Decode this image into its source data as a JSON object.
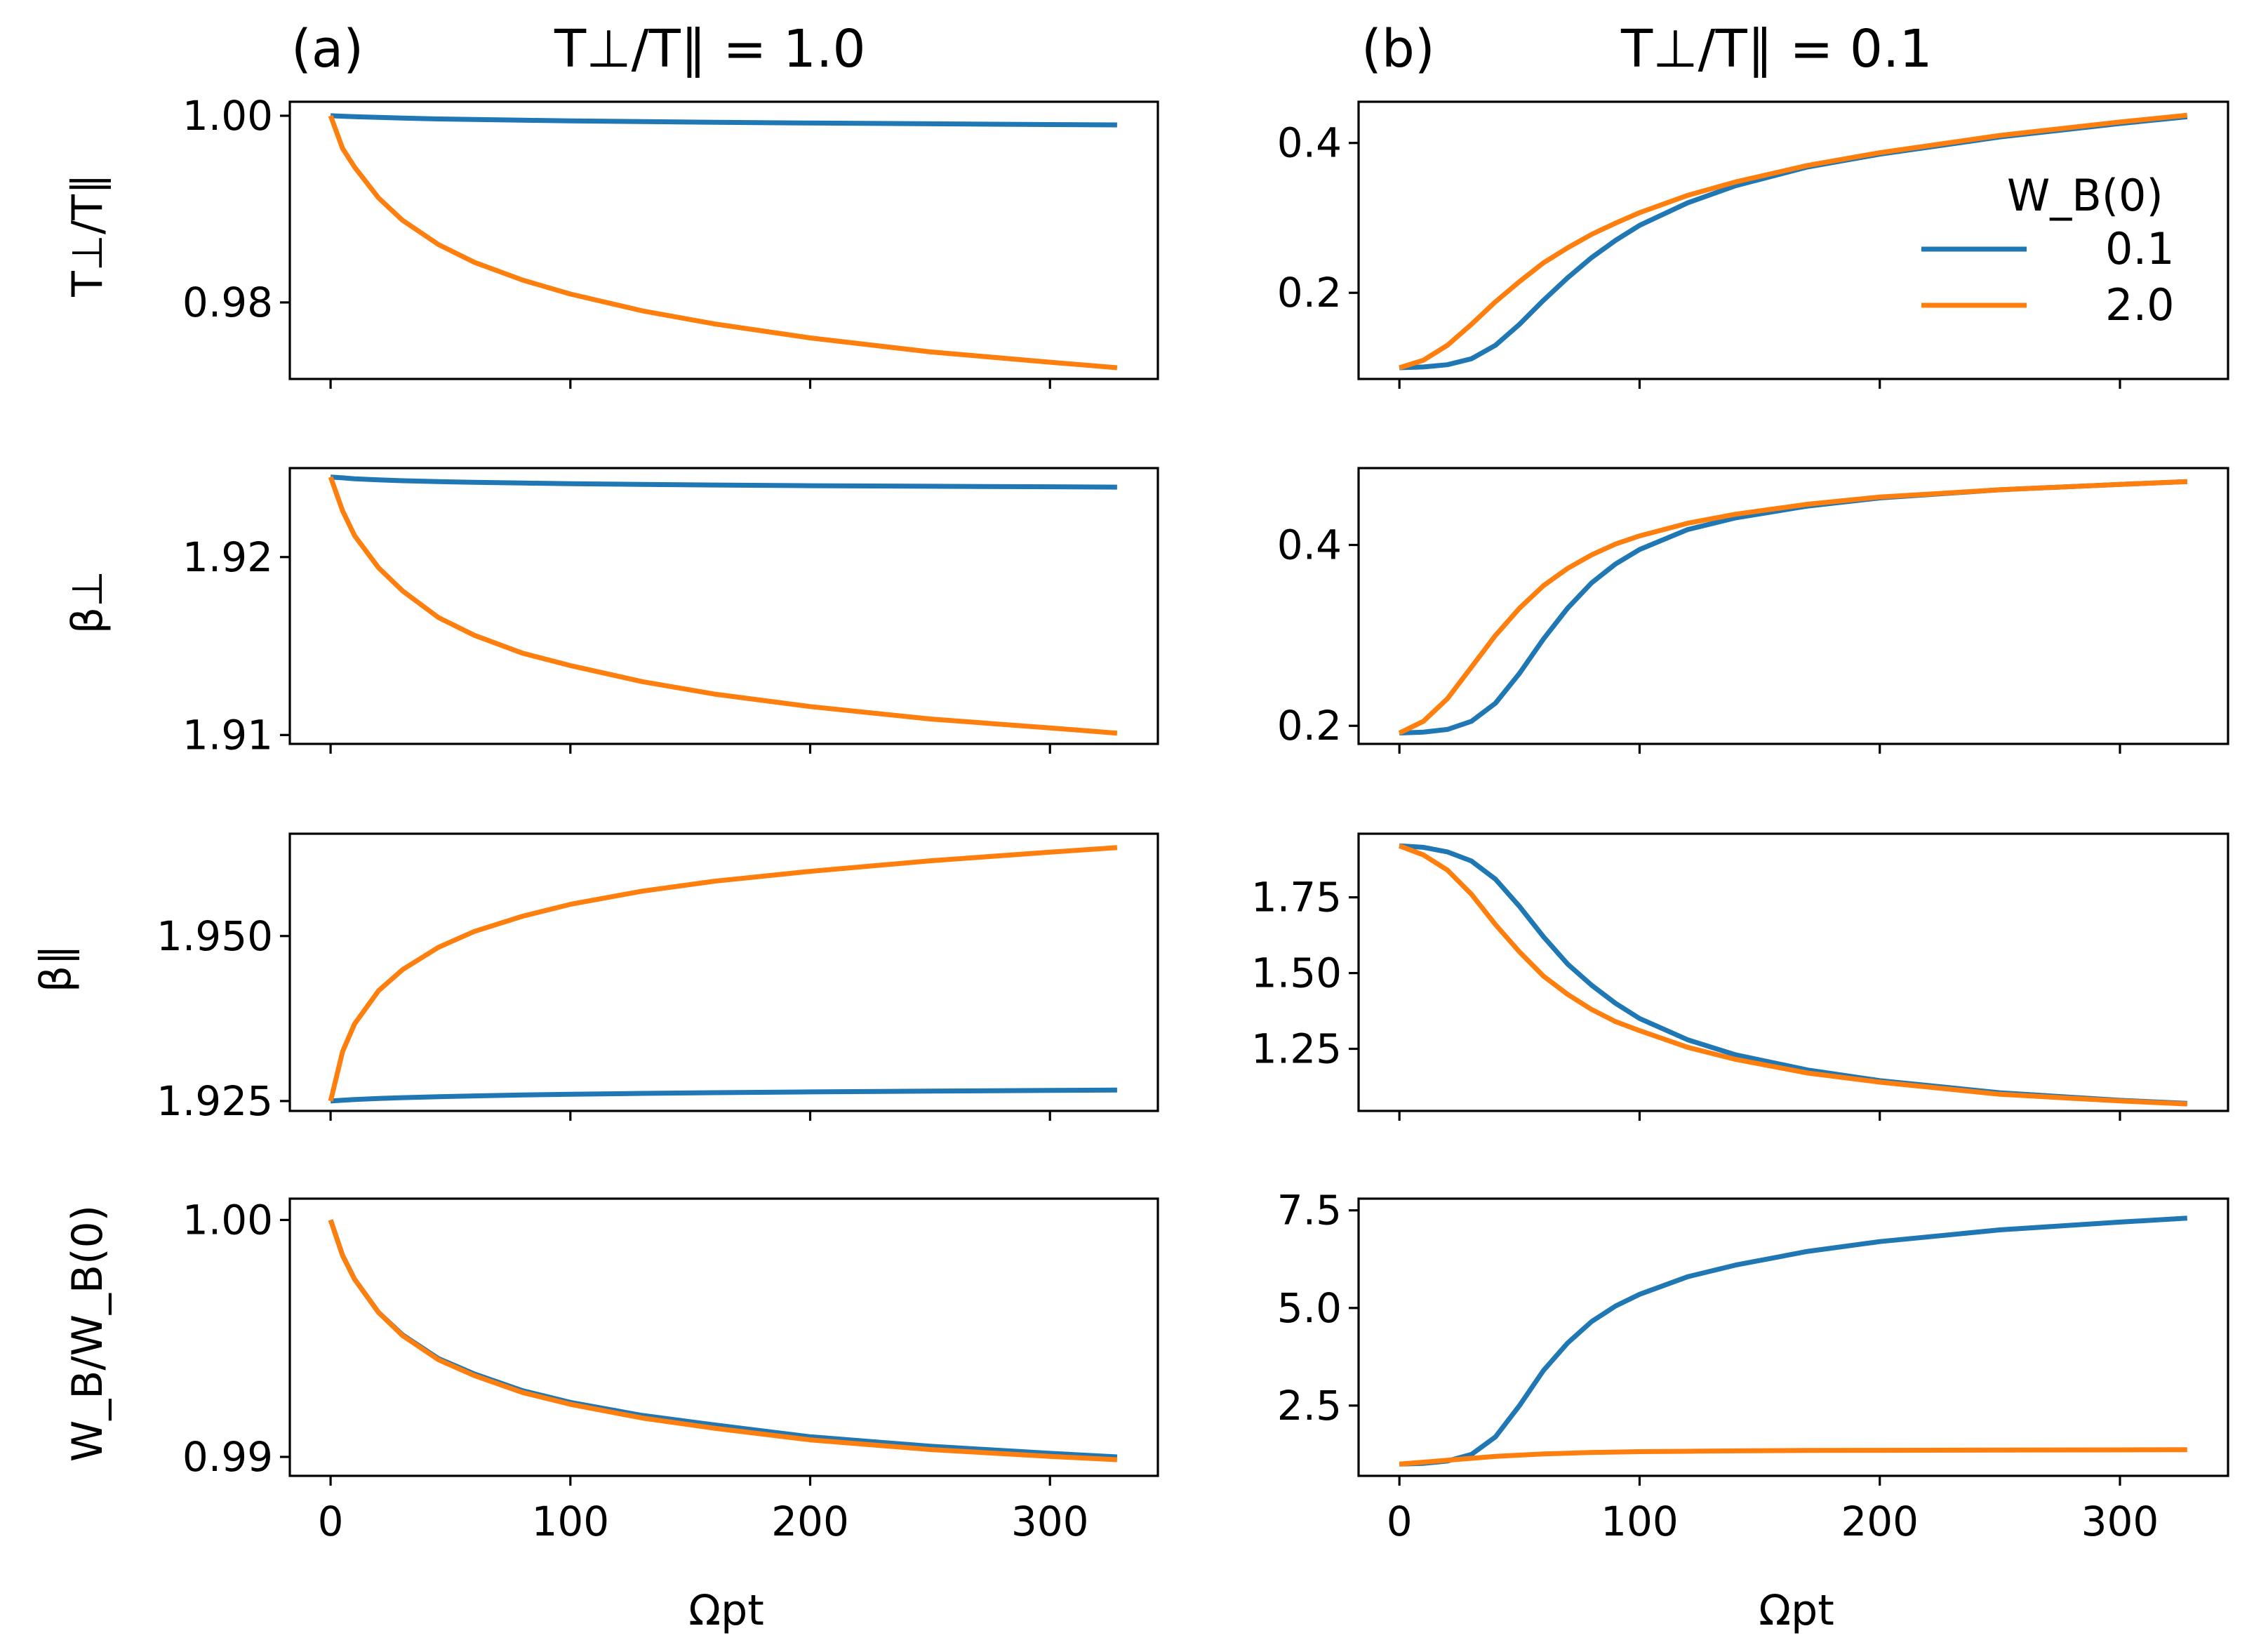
{
  "colors": {
    "wb_0_1": "#1f77b4",
    "wb_2_0": "#ff7f0e"
  },
  "legend": {
    "title": "W_B(0)",
    "entries": [
      {
        "label": "0.1",
        "color": "#1f77b4"
      },
      {
        "label": "2.0",
        "color": "#ff7f0e"
      }
    ]
  },
  "titles": {
    "a_tag": "(a)",
    "a_text": "T⊥/T∥ = 1.0",
    "b_tag": "(b)",
    "b_text": "T⊥/T∥ = 0.1"
  },
  "ylabels": [
    "T⊥/T∥",
    "β⊥",
    "β∥",
    "W_B/W_B(0)"
  ],
  "xlabel": "Ωpt",
  "chart_data": [
    {
      "id": "a-row1",
      "type": "line",
      "column": "a",
      "row": 1,
      "ylabel": "T⊥/T∥",
      "xlim": [
        -17,
        345
      ],
      "ylim": [
        0.9718,
        1.0015
      ],
      "xticks": [
        0,
        100,
        200,
        300
      ],
      "xticklabels": [
        "0",
        "100",
        "200",
        "300"
      ],
      "yticks": [
        0.98,
        1.0
      ],
      "yticklabels": [
        "0.98",
        "1.00"
      ],
      "x": [
        0,
        5,
        10,
        20,
        30,
        45,
        60,
        80,
        100,
        130,
        160,
        200,
        250,
        300,
        328
      ],
      "series": [
        {
          "name": "0.1",
          "color": "#1f77b4",
          "values": [
            1.0,
            0.99995,
            0.9999,
            0.99982,
            0.99975,
            0.99966,
            0.9996,
            0.99952,
            0.99945,
            0.99937,
            0.9993,
            0.99922,
            0.99914,
            0.99906,
            0.99902
          ]
        },
        {
          "name": "2.0",
          "color": "#ff7f0e",
          "values": [
            1.0,
            0.9965,
            0.9945,
            0.9912,
            0.9888,
            0.9862,
            0.9843,
            0.9824,
            0.9809,
            0.9791,
            0.9777,
            0.9762,
            0.9747,
            0.9736,
            0.973
          ]
        }
      ]
    },
    {
      "id": "a-row2",
      "type": "line",
      "column": "a",
      "row": 2,
      "ylabel": "β⊥",
      "xlim": [
        -17,
        345
      ],
      "ylim": [
        1.9095,
        1.925
      ],
      "xticks": [
        0,
        100,
        200,
        300
      ],
      "xticklabels": [
        "0",
        "100",
        "200",
        "300"
      ],
      "yticks": [
        1.91,
        1.92
      ],
      "yticklabels": [
        "1.91",
        "1.92"
      ],
      "x": [
        0,
        5,
        10,
        20,
        30,
        45,
        60,
        80,
        100,
        130,
        160,
        200,
        250,
        300,
        328
      ],
      "series": [
        {
          "name": "0.1",
          "color": "#1f77b4",
          "values": [
            1.9245,
            1.92445,
            1.9244,
            1.92434,
            1.92429,
            1.92424,
            1.9242,
            1.92416,
            1.92412,
            1.92408,
            1.92405,
            1.92401,
            1.92398,
            1.92395,
            1.92393
          ]
        },
        {
          "name": "2.0",
          "color": "#ff7f0e",
          "values": [
            1.9245,
            1.9226,
            1.9212,
            1.9194,
            1.9181,
            1.9166,
            1.9156,
            1.9146,
            1.9139,
            1.913,
            1.9123,
            1.9116,
            1.9109,
            1.9104,
            1.9101
          ]
        }
      ]
    },
    {
      "id": "a-row3",
      "type": "line",
      "column": "a",
      "row": 3,
      "ylabel": "β∥",
      "xlim": [
        -17,
        345
      ],
      "ylim": [
        1.9235,
        1.9655
      ],
      "xticks": [
        0,
        100,
        200,
        300
      ],
      "xticklabels": [
        "0",
        "100",
        "200",
        "300"
      ],
      "yticks": [
        1.925,
        1.95
      ],
      "yticklabels": [
        "1.925",
        "1.950"
      ],
      "x": [
        0,
        5,
        10,
        20,
        30,
        45,
        60,
        80,
        100,
        130,
        160,
        200,
        250,
        300,
        328
      ],
      "series": [
        {
          "name": "0.1",
          "color": "#1f77b4",
          "values": [
            1.925,
            1.92512,
            1.92522,
            1.92538,
            1.92551,
            1.92566,
            1.92578,
            1.92591,
            1.92602,
            1.92616,
            1.92626,
            1.92638,
            1.92651,
            1.92661,
            1.92666
          ]
        },
        {
          "name": "2.0",
          "color": "#ff7f0e",
          "values": [
            1.925,
            1.9325,
            1.9367,
            1.9417,
            1.9449,
            1.9483,
            1.9507,
            1.953,
            1.9548,
            1.9568,
            1.9583,
            1.9598,
            1.9614,
            1.9627,
            1.9634
          ]
        }
      ]
    },
    {
      "id": "a-row4",
      "type": "line",
      "column": "a",
      "row": 4,
      "ylabel": "W_B/W_B(0)",
      "xlim": [
        -17,
        345
      ],
      "ylim": [
        0.9892,
        1.0009
      ],
      "xticks": [
        0,
        100,
        200,
        300
      ],
      "xticklabels": [
        "0",
        "100",
        "200",
        "300"
      ],
      "yticks": [
        0.99,
        1.0
      ],
      "yticklabels": [
        "0.99",
        "1.00"
      ],
      "x": [
        0,
        5,
        10,
        20,
        30,
        45,
        60,
        80,
        100,
        130,
        160,
        200,
        250,
        300,
        328
      ],
      "series": [
        {
          "name": "0.1",
          "color": "#1f77b4",
          "values": [
            1.0,
            0.9985,
            0.9975,
            0.9961,
            0.99515,
            0.99415,
            0.9935,
            0.9928,
            0.9923,
            0.99175,
            0.99135,
            0.99085,
            0.99045,
            0.99015,
            0.99
          ]
        },
        {
          "name": "2.0",
          "color": "#ff7f0e",
          "values": [
            1.0,
            0.9985,
            0.9975,
            0.9961,
            0.99512,
            0.9941,
            0.99343,
            0.99272,
            0.99222,
            0.99164,
            0.99121,
            0.99072,
            0.99031,
            0.99002,
            0.98988
          ]
        }
      ]
    },
    {
      "id": "b-row1",
      "type": "line",
      "column": "b",
      "row": 1,
      "ylabel": "",
      "xlim": [
        -17,
        345
      ],
      "ylim": [
        0.085,
        0.455
      ],
      "xticks": [
        0,
        100,
        200,
        300
      ],
      "xticklabels": [
        "0",
        "100",
        "200",
        "300"
      ],
      "yticks": [
        0.2,
        0.4
      ],
      "yticklabels": [
        "0.2",
        "0.4"
      ],
      "x": [
        0,
        10,
        20,
        30,
        40,
        50,
        60,
        70,
        80,
        90,
        100,
        120,
        140,
        170,
        200,
        250,
        300,
        328
      ],
      "series": [
        {
          "name": "0.1",
          "color": "#1f77b4",
          "values": [
            0.1,
            0.101,
            0.104,
            0.112,
            0.13,
            0.158,
            0.19,
            0.22,
            0.247,
            0.27,
            0.29,
            0.32,
            0.343,
            0.368,
            0.385,
            0.408,
            0.426,
            0.435
          ]
        },
        {
          "name": "2.0",
          "color": "#ff7f0e",
          "values": [
            0.1,
            0.11,
            0.13,
            0.158,
            0.188,
            0.215,
            0.24,
            0.26,
            0.278,
            0.293,
            0.307,
            0.33,
            0.348,
            0.37,
            0.387,
            0.41,
            0.428,
            0.437
          ]
        }
      ]
    },
    {
      "id": "b-row2",
      "type": "line",
      "column": "b",
      "row": 2,
      "ylabel": "",
      "xlim": [
        -17,
        345
      ],
      "ylim": [
        0.18,
        0.485
      ],
      "xticks": [
        0,
        100,
        200,
        300
      ],
      "xticklabels": [
        "0",
        "100",
        "200",
        "300"
      ],
      "yticks": [
        0.2,
        0.4
      ],
      "yticklabels": [
        "0.2",
        "0.4"
      ],
      "x": [
        0,
        10,
        20,
        30,
        40,
        50,
        60,
        70,
        80,
        90,
        100,
        120,
        140,
        170,
        200,
        250,
        300,
        328
      ],
      "series": [
        {
          "name": "0.1",
          "color": "#1f77b4",
          "values": [
            0.192,
            0.193,
            0.196,
            0.205,
            0.225,
            0.258,
            0.296,
            0.33,
            0.358,
            0.379,
            0.395,
            0.417,
            0.43,
            0.443,
            0.452,
            0.461,
            0.467,
            0.47
          ]
        },
        {
          "name": "2.0",
          "color": "#ff7f0e",
          "values": [
            0.192,
            0.205,
            0.23,
            0.265,
            0.3,
            0.33,
            0.355,
            0.374,
            0.389,
            0.401,
            0.41,
            0.424,
            0.434,
            0.445,
            0.453,
            0.461,
            0.467,
            0.47
          ]
        }
      ]
    },
    {
      "id": "b-row3",
      "type": "line",
      "column": "b",
      "row": 3,
      "ylabel": "",
      "xlim": [
        -17,
        345
      ],
      "ylim": [
        1.045,
        1.96
      ],
      "xticks": [
        0,
        100,
        200,
        300
      ],
      "xticklabels": [
        "0",
        "100",
        "200",
        "300"
      ],
      "yticks": [
        1.25,
        1.5,
        1.75
      ],
      "yticklabels": [
        "1.25",
        "1.50",
        "1.75"
      ],
      "x": [
        0,
        10,
        20,
        30,
        40,
        50,
        60,
        70,
        80,
        90,
        100,
        120,
        140,
        170,
        200,
        250,
        300,
        328
      ],
      "series": [
        {
          "name": "0.1",
          "color": "#1f77b4",
          "values": [
            1.92,
            1.915,
            1.9,
            1.87,
            1.81,
            1.72,
            1.62,
            1.53,
            1.46,
            1.4,
            1.35,
            1.28,
            1.23,
            1.18,
            1.145,
            1.105,
            1.08,
            1.07
          ]
        },
        {
          "name": "2.0",
          "color": "#ff7f0e",
          "values": [
            1.92,
            1.89,
            1.84,
            1.76,
            1.66,
            1.57,
            1.49,
            1.43,
            1.38,
            1.34,
            1.31,
            1.255,
            1.215,
            1.17,
            1.14,
            1.1,
            1.078,
            1.068
          ]
        }
      ]
    },
    {
      "id": "b-row4",
      "type": "line",
      "column": "b",
      "row": 4,
      "ylabel": "",
      "xlim": [
        -17,
        345
      ],
      "ylim": [
        0.7,
        7.8
      ],
      "xticks": [
        0,
        100,
        200,
        300
      ],
      "xticklabels": [
        "0",
        "100",
        "200",
        "300"
      ],
      "yticks": [
        2.5,
        5.0,
        7.5
      ],
      "yticklabels": [
        "2.5",
        "5.0",
        "7.5"
      ],
      "x": [
        0,
        10,
        20,
        30,
        40,
        50,
        60,
        70,
        80,
        90,
        100,
        120,
        140,
        170,
        200,
        250,
        300,
        328
      ],
      "series": [
        {
          "name": "0.1",
          "color": "#1f77b4",
          "values": [
            1.0,
            1.02,
            1.08,
            1.25,
            1.7,
            2.5,
            3.4,
            4.1,
            4.65,
            5.05,
            5.35,
            5.8,
            6.1,
            6.45,
            6.7,
            7.0,
            7.2,
            7.3
          ]
        },
        {
          "name": "2.0",
          "color": "#ff7f0e",
          "values": [
            1.0,
            1.05,
            1.1,
            1.15,
            1.2,
            1.23,
            1.26,
            1.28,
            1.3,
            1.31,
            1.32,
            1.33,
            1.34,
            1.35,
            1.355,
            1.36,
            1.365,
            1.37
          ]
        }
      ]
    }
  ]
}
